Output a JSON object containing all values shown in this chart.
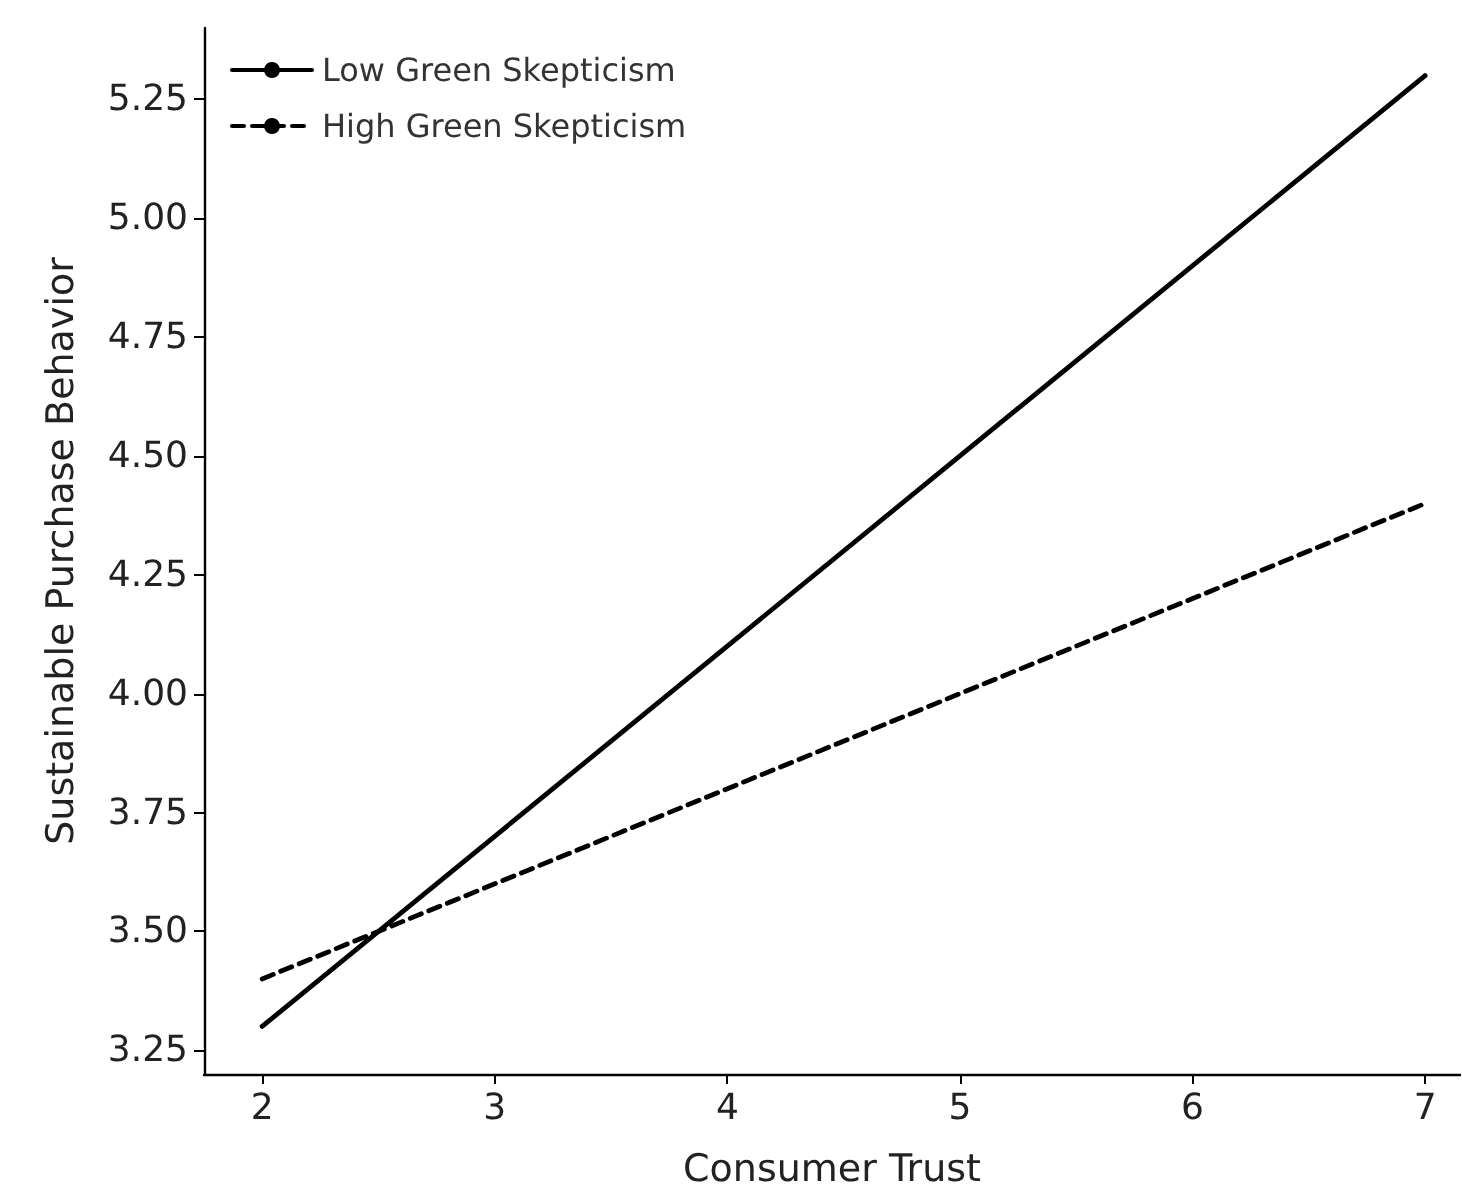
{
  "chart_data": {
    "type": "line",
    "xlabel": "Consumer Trust",
    "ylabel": "Sustainable Purchase Behavior",
    "x": [
      2,
      7
    ],
    "series": [
      {
        "name": "Low Green Skepticism",
        "color": "#000000",
        "values": [
          3.3,
          5.3
        ],
        "line_style": "solid"
      },
      {
        "name": "High Green Skepticism",
        "color": "#000000",
        "values": [
          3.4,
          4.4
        ],
        "line_style": "dashed"
      }
    ],
    "xlim": [
      1.75,
      7.15
    ],
    "xticks": [
      2,
      3,
      4,
      5,
      6,
      7
    ],
    "ylim": [
      3.2,
      5.4
    ],
    "yticks": [
      3.25,
      {
        "value": 3.5,
        "label": "3.50"
      },
      3.75,
      {
        "value": 4,
        "label": "4.00"
      },
      4.25,
      {
        "value": 4.5,
        "label": "4.50"
      },
      4.75,
      {
        "value": 5,
        "label": "5.00"
      },
      5.25
    ],
    "grid": false,
    "legend": "top left",
    "marker": "none"
  }
}
